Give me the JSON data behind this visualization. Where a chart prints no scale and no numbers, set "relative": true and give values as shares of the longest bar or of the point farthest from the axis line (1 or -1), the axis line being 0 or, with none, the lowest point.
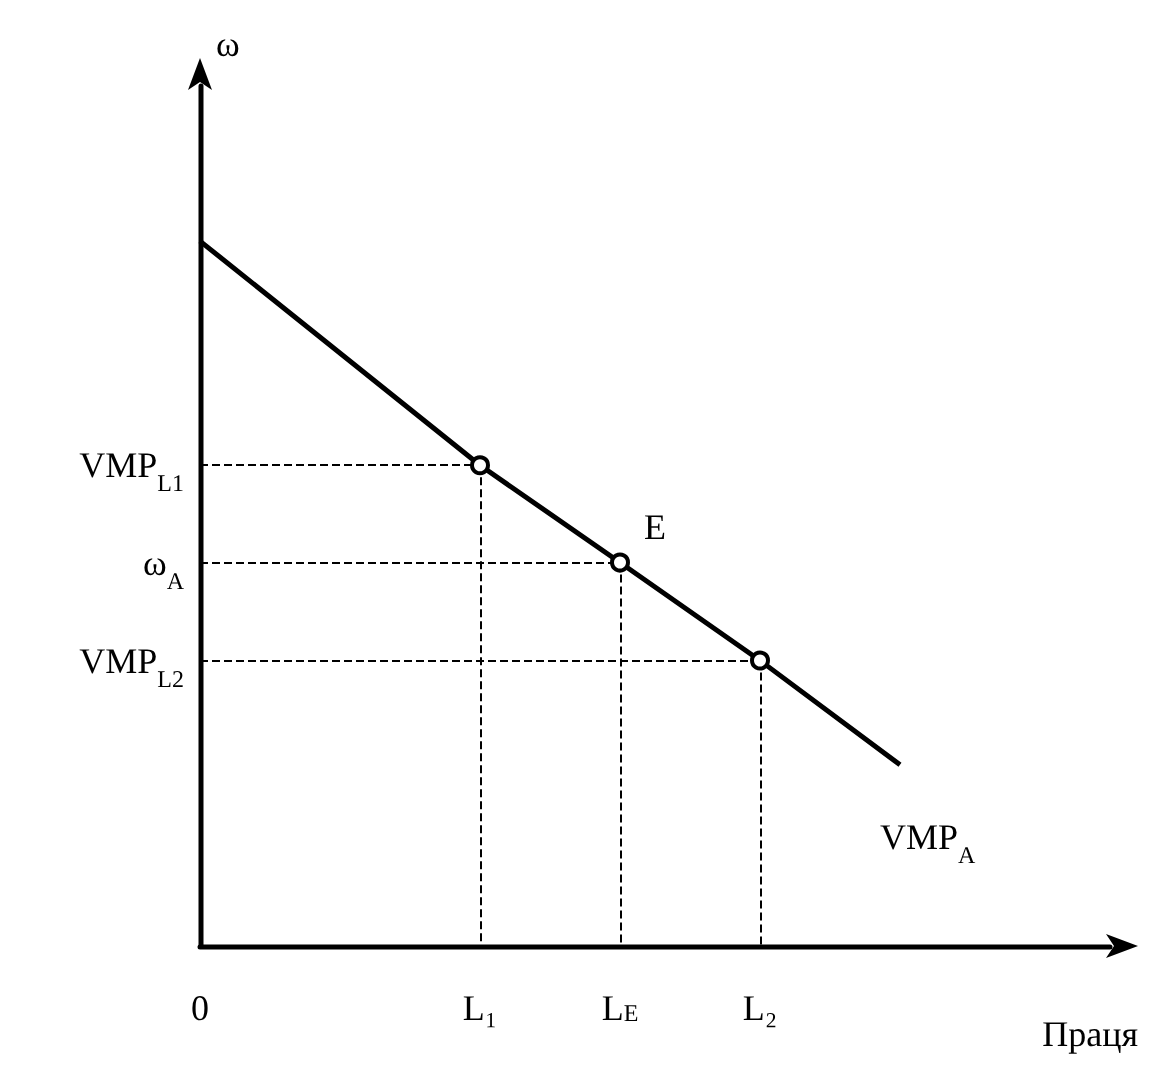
{
  "chart_data": {
    "type": "line",
    "xlabel": "Праця",
    "ylabel": "ω",
    "relative": true,
    "categories": [
      "0",
      null,
      null,
      null,
      "L₁",
      null,
      "L$_{E}$",
      null,
      "L₂",
      null,
      null,
      null,
      null,
      null
    ],
    "series": [
      {
        "name": "VMP$_{A}$",
        "color": "#000000",
        "values": [
          1,
          null,
          null,
          null,
          0.682,
          null,
          0.544,
          null,
          0.405,
          null,
          0.257,
          null,
          null,
          null
        ]
      }
    ],
    "ref_lines": [
      {
        "axis": "y",
        "value": 0.682,
        "label": "VMP$_{L1}$",
        "line_style": "dashed"
      },
      {
        "axis": "y",
        "value": 0.544,
        "label": "ω$_{A}$",
        "line_style": "dashed"
      },
      {
        "axis": "y",
        "value": 0.405,
        "label": "VMP$_{L2}$",
        "line_style": "dashed"
      },
      {
        "axis": "x",
        "value": "L₁",
        "label": null,
        "line_style": "dashed"
      },
      {
        "axis": "x",
        "value": "L$_{E}$",
        "label": null,
        "line_style": "dashed"
      },
      {
        "axis": "x",
        "value": "L₂",
        "label": null,
        "line_style": "dashed"
      }
    ],
    "annotations": [
      {
        "text": "E",
        "x": "L$_{E}$",
        "y": 0.544
      }
    ],
    "marker": "circle",
    "line_style": "solid",
    "grid": false
  }
}
